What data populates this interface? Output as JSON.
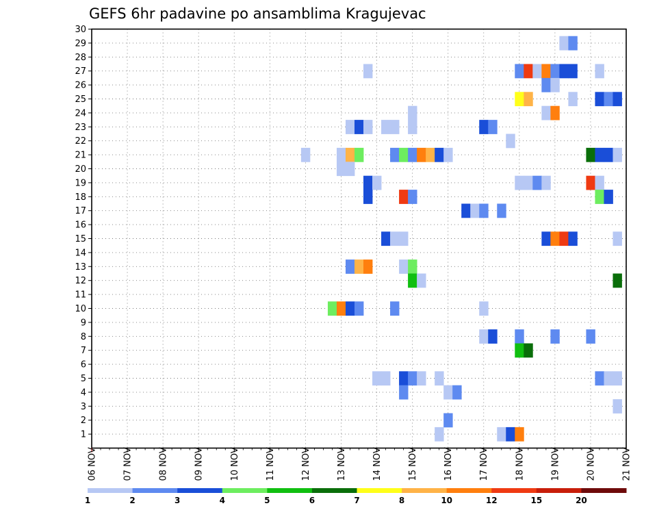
{
  "chart_data": {
    "type": "heatmap",
    "title": "GEFS 6hr padavine po ansamblima Kragujevac",
    "x_labels": [
      "06 NOV",
      "07 NOV",
      "08 NOV",
      "09 NOV",
      "10 NOV",
      "11 NOV",
      "12 NOV",
      "13 NOV",
      "14 NOV",
      "15 NOV",
      "16 NOV",
      "17 NOV",
      "18 NOV",
      "19 NOV",
      "20 NOV",
      "21 NOV"
    ],
    "y_labels": [
      "1",
      "2",
      "3",
      "4",
      "5",
      "6",
      "7",
      "8",
      "9",
      "10",
      "11",
      "12",
      "13",
      "14",
      "15",
      "16",
      "17",
      "18",
      "19",
      "20",
      "21",
      "22",
      "23",
      "24",
      "25",
      "26",
      "27",
      "28",
      "29",
      "30"
    ],
    "ylim": [
      0,
      30
    ],
    "x_units": "days from 06 NOV, 6-hourly steps",
    "grid": true,
    "legend": {
      "position": "bottom",
      "thresholds": [
        "1",
        "2",
        "3",
        "4",
        "5",
        "6",
        "7",
        "8",
        "10",
        "12",
        "15",
        "20"
      ],
      "colors": [
        "#b7c8f4",
        "#5e8af0",
        "#1a4ed8",
        "#6ded5f",
        "#10bf10",
        "#0a6e0a",
        "#ffff19",
        "#ffb347",
        "#ff7f0e",
        "#ef3a12",
        "#c81e0a",
        "#6e0a0a"
      ]
    },
    "cells": [
      {
        "m": 29,
        "x": 13.25,
        "c": 0
      },
      {
        "m": 29,
        "x": 13.5,
        "c": 1
      },
      {
        "m": 27,
        "x": 7.75,
        "c": 0
      },
      {
        "m": 27,
        "x": 12,
        "c": 1
      },
      {
        "m": 27,
        "x": 12.25,
        "c": 9
      },
      {
        "m": 27,
        "x": 12.5,
        "c": 0
      },
      {
        "m": 27,
        "x": 12.75,
        "c": 8
      },
      {
        "m": 27,
        "x": 13,
        "c": 1
      },
      {
        "m": 27,
        "x": 13.25,
        "c": 2
      },
      {
        "m": 27,
        "x": 13.5,
        "c": 2
      },
      {
        "m": 27,
        "x": 14.25,
        "c": 0
      },
      {
        "m": 26,
        "x": 12.75,
        "c": 1
      },
      {
        "m": 26,
        "x": 13,
        "c": 0
      },
      {
        "m": 25,
        "x": 12,
        "c": 6
      },
      {
        "m": 25,
        "x": 12.25,
        "c": 7
      },
      {
        "m": 25,
        "x": 13.5,
        "c": 0
      },
      {
        "m": 25,
        "x": 14.25,
        "c": 2
      },
      {
        "m": 25,
        "x": 14.5,
        "c": 1
      },
      {
        "m": 25,
        "x": 14.75,
        "c": 2
      },
      {
        "m": 24,
        "x": 9,
        "c": 0
      },
      {
        "m": 24,
        "x": 12.75,
        "c": 0
      },
      {
        "m": 24,
        "x": 13,
        "c": 8
      },
      {
        "m": 23,
        "x": 7.25,
        "c": 0
      },
      {
        "m": 23,
        "x": 7.5,
        "c": 2
      },
      {
        "m": 23,
        "x": 7.75,
        "c": 0
      },
      {
        "m": 23,
        "x": 8.25,
        "c": 0
      },
      {
        "m": 23,
        "x": 8.5,
        "c": 0
      },
      {
        "m": 23,
        "x": 9,
        "c": 0
      },
      {
        "m": 23,
        "x": 11,
        "c": 2
      },
      {
        "m": 23,
        "x": 11.25,
        "c": 1
      },
      {
        "m": 22,
        "x": 11.75,
        "c": 0
      },
      {
        "m": 21,
        "x": 6,
        "c": 0
      },
      {
        "m": 21,
        "x": 7,
        "c": 0
      },
      {
        "m": 21,
        "x": 7.25,
        "c": 7
      },
      {
        "m": 21,
        "x": 7.5,
        "c": 3
      },
      {
        "m": 21,
        "x": 8.5,
        "c": 1
      },
      {
        "m": 21,
        "x": 8.75,
        "c": 3
      },
      {
        "m": 21,
        "x": 9,
        "c": 1
      },
      {
        "m": 21,
        "x": 9.25,
        "c": 8
      },
      {
        "m": 21,
        "x": 9.5,
        "c": 7
      },
      {
        "m": 21,
        "x": 9.75,
        "c": 2
      },
      {
        "m": 21,
        "x": 10,
        "c": 0
      },
      {
        "m": 21,
        "x": 14,
        "c": 5
      },
      {
        "m": 21,
        "x": 14.25,
        "c": 2
      },
      {
        "m": 21,
        "x": 14.5,
        "c": 2
      },
      {
        "m": 21,
        "x": 14.75,
        "c": 0
      },
      {
        "m": 20,
        "x": 7,
        "c": 0
      },
      {
        "m": 20,
        "x": 7.25,
        "c": 0
      },
      {
        "m": 19,
        "x": 7.75,
        "c": 2
      },
      {
        "m": 19,
        "x": 8,
        "c": 0
      },
      {
        "m": 19,
        "x": 12,
        "c": 0
      },
      {
        "m": 19,
        "x": 12.25,
        "c": 0
      },
      {
        "m": 19,
        "x": 12.5,
        "c": 1
      },
      {
        "m": 19,
        "x": 12.75,
        "c": 0
      },
      {
        "m": 19,
        "x": 14,
        "c": 9
      },
      {
        "m": 19,
        "x": 14.25,
        "c": 0
      },
      {
        "m": 18,
        "x": 7.75,
        "c": 2
      },
      {
        "m": 18,
        "x": 8.75,
        "c": 9
      },
      {
        "m": 18,
        "x": 9,
        "c": 1
      },
      {
        "m": 18,
        "x": 14.25,
        "c": 3
      },
      {
        "m": 18,
        "x": 14.5,
        "c": 2
      },
      {
        "m": 17,
        "x": 10.5,
        "c": 2
      },
      {
        "m": 17,
        "x": 10.75,
        "c": 0
      },
      {
        "m": 17,
        "x": 11,
        "c": 1
      },
      {
        "m": 17,
        "x": 11.5,
        "c": 1
      },
      {
        "m": 15,
        "x": 8.25,
        "c": 2
      },
      {
        "m": 15,
        "x": 8.5,
        "c": 0
      },
      {
        "m": 15,
        "x": 8.75,
        "c": 0
      },
      {
        "m": 15,
        "x": 12.75,
        "c": 2
      },
      {
        "m": 15,
        "x": 13,
        "c": 8
      },
      {
        "m": 15,
        "x": 13.25,
        "c": 9
      },
      {
        "m": 15,
        "x": 13.5,
        "c": 2
      },
      {
        "m": 15,
        "x": 14.75,
        "c": 0
      },
      {
        "m": 13,
        "x": 7.25,
        "c": 1
      },
      {
        "m": 13,
        "x": 7.5,
        "c": 7
      },
      {
        "m": 13,
        "x": 7.75,
        "c": 8
      },
      {
        "m": 13,
        "x": 8.75,
        "c": 0
      },
      {
        "m": 13,
        "x": 9,
        "c": 3
      },
      {
        "m": 12,
        "x": 9,
        "c": 4
      },
      {
        "m": 12,
        "x": 9.25,
        "c": 0
      },
      {
        "m": 12,
        "x": 14.75,
        "c": 5
      },
      {
        "m": 10,
        "x": 6.75,
        "c": 3
      },
      {
        "m": 10,
        "x": 7,
        "c": 8
      },
      {
        "m": 10,
        "x": 7.25,
        "c": 2
      },
      {
        "m": 10,
        "x": 7.5,
        "c": 1
      },
      {
        "m": 10,
        "x": 8.5,
        "c": 1
      },
      {
        "m": 10,
        "x": 11,
        "c": 0
      },
      {
        "m": 8,
        "x": 11,
        "c": 0
      },
      {
        "m": 8,
        "x": 11.25,
        "c": 2
      },
      {
        "m": 8,
        "x": 12,
        "c": 1
      },
      {
        "m": 8,
        "x": 13,
        "c": 1
      },
      {
        "m": 8,
        "x": 14,
        "c": 1
      },
      {
        "m": 7,
        "x": 12,
        "c": 4
      },
      {
        "m": 7,
        "x": 12.25,
        "c": 5
      },
      {
        "m": 5,
        "x": 8,
        "c": 0
      },
      {
        "m": 5,
        "x": 8.25,
        "c": 0
      },
      {
        "m": 5,
        "x": 8.75,
        "c": 2
      },
      {
        "m": 5,
        "x": 9,
        "c": 1
      },
      {
        "m": 5,
        "x": 9.25,
        "c": 0
      },
      {
        "m": 5,
        "x": 9.75,
        "c": 0
      },
      {
        "m": 5,
        "x": 14.25,
        "c": 1
      },
      {
        "m": 5,
        "x": 14.5,
        "c": 0
      },
      {
        "m": 5,
        "x": 14.75,
        "c": 0
      },
      {
        "m": 4,
        "x": 8.75,
        "c": 1
      },
      {
        "m": 4,
        "x": 10,
        "c": 0
      },
      {
        "m": 4,
        "x": 10.25,
        "c": 1
      },
      {
        "m": 3,
        "x": 14.75,
        "c": 0
      },
      {
        "m": 2,
        "x": 10,
        "c": 1
      },
      {
        "m": 1,
        "x": 9.75,
        "c": 0
      },
      {
        "m": 1,
        "x": 11.5,
        "c": 0
      },
      {
        "m": 1,
        "x": 11.75,
        "c": 2
      },
      {
        "m": 1,
        "x": 12,
        "c": 8
      }
    ]
  }
}
